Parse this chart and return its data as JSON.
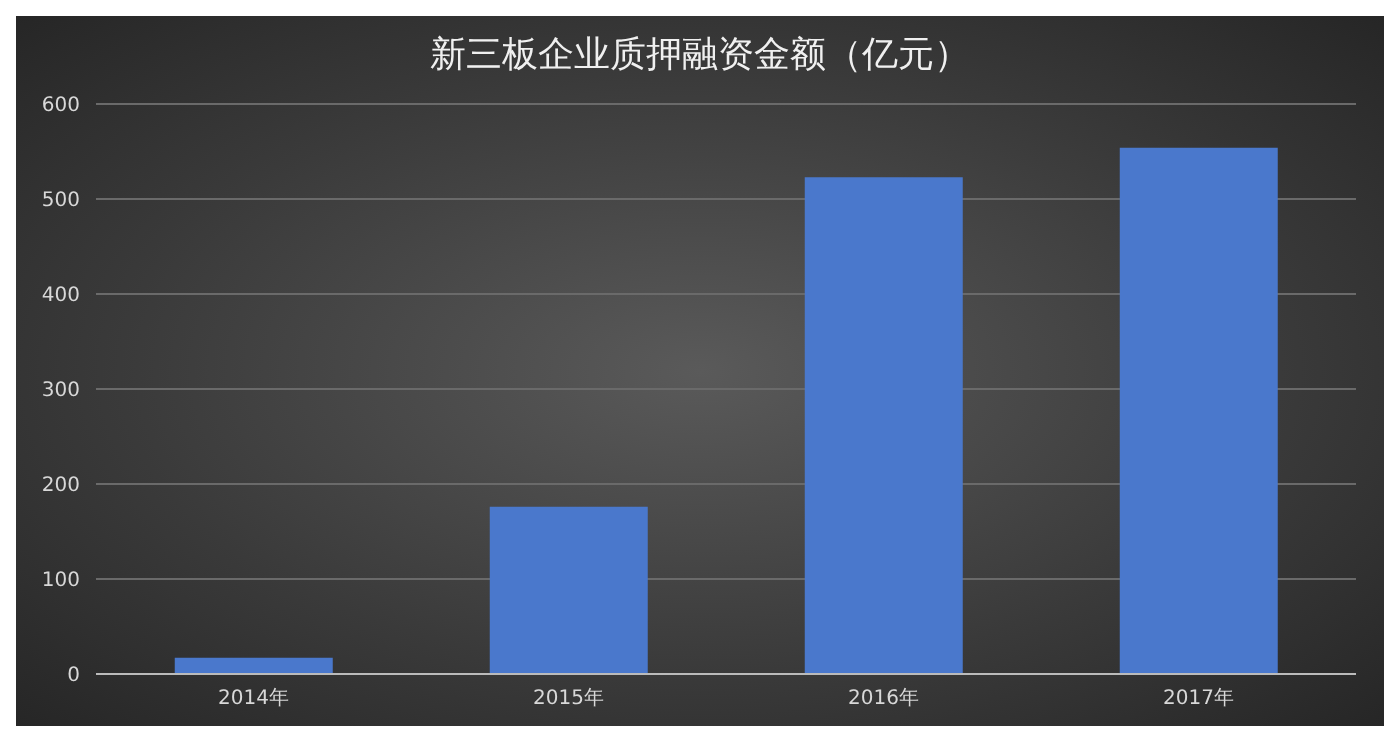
{
  "chart_data": {
    "type": "bar",
    "title": "新三板企业质押融资金额（亿元）",
    "categories": [
      "2014年",
      "2015年",
      "2016年",
      "2017年"
    ],
    "values": [
      17,
      176,
      523,
      554
    ],
    "color": "#4a78cc",
    "ylim": [
      0,
      600
    ],
    "yticks": [
      0,
      100,
      200,
      300,
      400,
      500,
      600
    ],
    "grid": "y"
  }
}
